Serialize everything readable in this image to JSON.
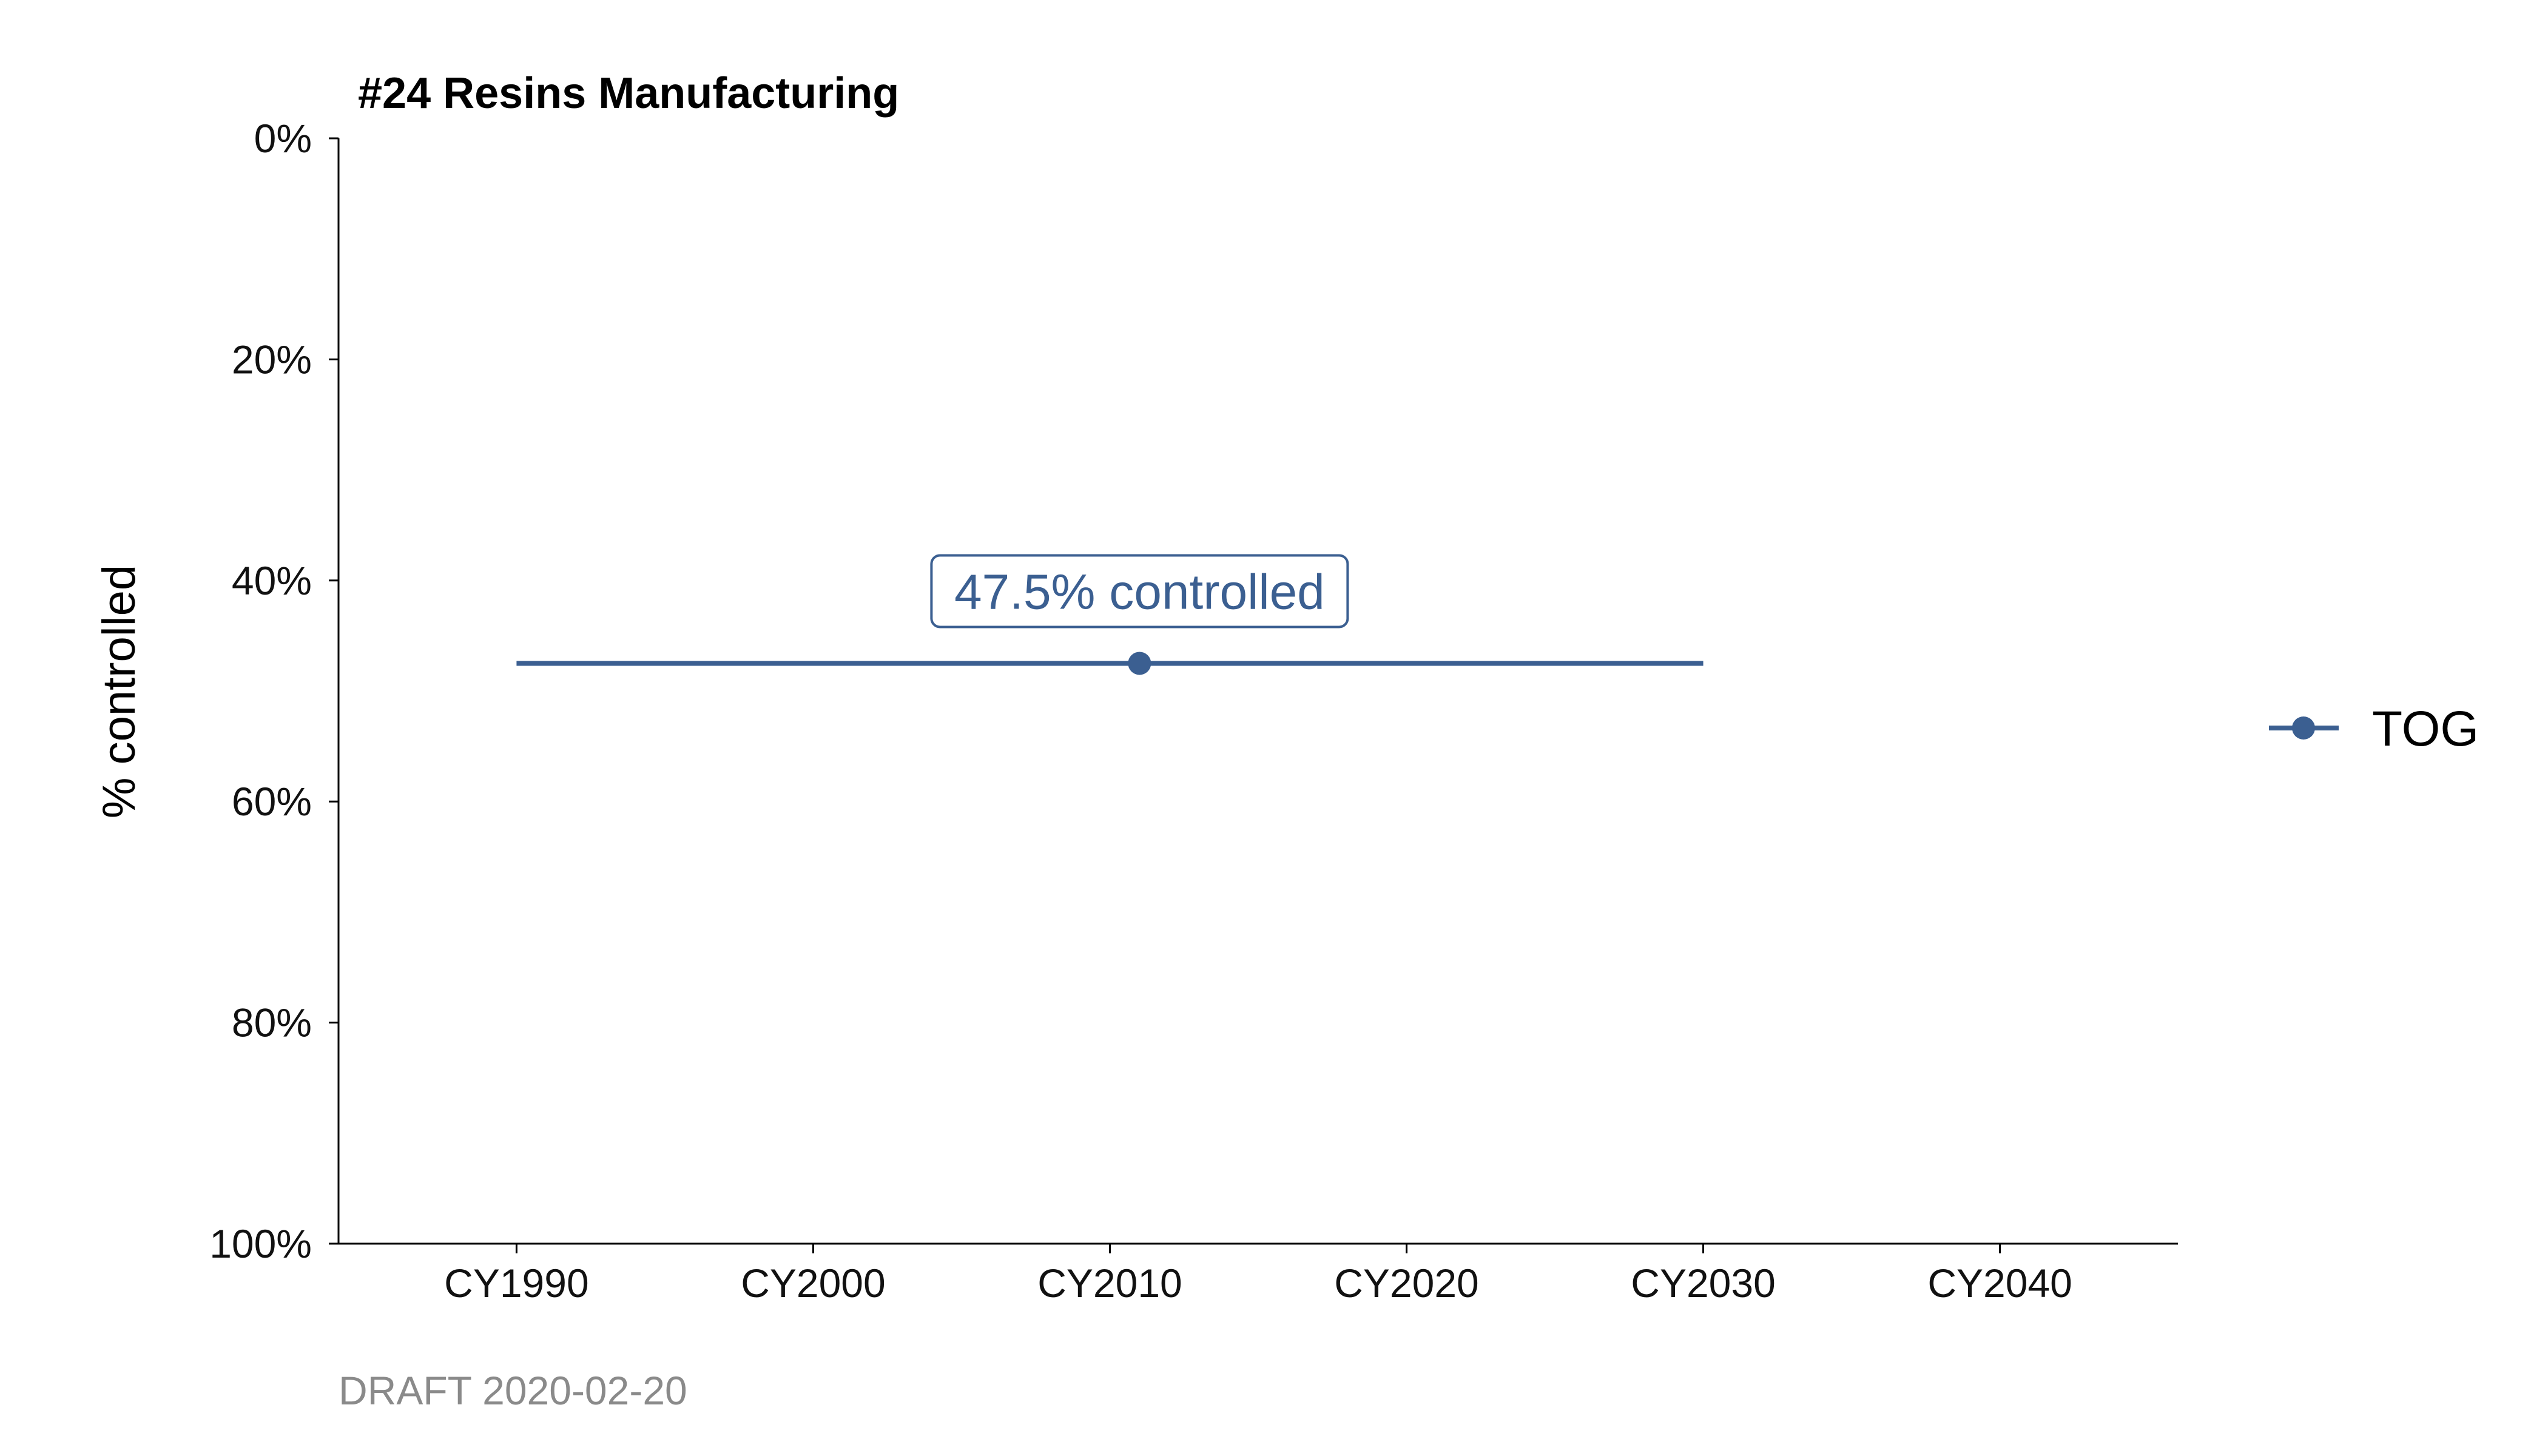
{
  "chart_data": {
    "type": "line",
    "title": "#24 Resins Manufacturing",
    "xlabel": "",
    "ylabel": "% controlled",
    "x_ticks": [
      1990,
      2000,
      2010,
      2020,
      2030,
      2040
    ],
    "x_tick_labels": [
      "CY1990",
      "CY2000",
      "CY2010",
      "CY2020",
      "CY2030",
      "CY2040"
    ],
    "xlim": [
      1984,
      2046
    ],
    "y_ticks": [
      0,
      20,
      40,
      60,
      80,
      100
    ],
    "y_tick_labels": [
      "0%",
      "20%",
      "40%",
      "60%",
      "80%",
      "100%"
    ],
    "ylim": [
      0,
      100
    ],
    "y_reversed": true,
    "grid": false,
    "legend_position": "right",
    "series": [
      {
        "name": "TOG",
        "color": "#3b5f91",
        "x": [
          1990,
          2030
        ],
        "y": [
          47.5,
          47.5
        ],
        "marker": {
          "x": 2011,
          "y": 47.5
        }
      }
    ],
    "annotations": [
      {
        "text": "47.5% controlled",
        "x": 2011,
        "y": 47.5,
        "color": "#3b5f91"
      }
    ],
    "caption": "DRAFT 2020-02-20"
  }
}
